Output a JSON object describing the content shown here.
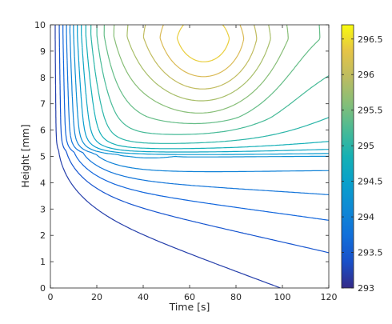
{
  "chart_data": {
    "type": "contour",
    "title": "",
    "xlabel": "Time [s]",
    "ylabel": "Height [mm]",
    "xlim": [
      0,
      120
    ],
    "ylim": [
      0,
      10
    ],
    "xticks": [
      0,
      20,
      40,
      60,
      80,
      100,
      120
    ],
    "yticks": [
      0,
      1,
      2,
      3,
      4,
      5,
      6,
      7,
      8,
      9,
      10
    ],
    "colorbar": {
      "range": [
        293,
        296.7
      ],
      "ticks": [
        293,
        293.5,
        294,
        294.5,
        295,
        295.5,
        296,
        296.5
      ],
      "tick_labels": [
        "293",
        "293.5",
        "294",
        "294.5",
        "295",
        "295.5",
        "296",
        "296.5"
      ],
      "colormap": "parula"
    },
    "grid": false,
    "contour_interval": 0.2,
    "contour_levels": [
      293.2,
      293.4,
      293.6,
      293.8,
      294.0,
      294.2,
      294.4,
      294.6,
      294.8,
      295.0,
      295.2,
      295.4,
      295.6,
      295.8,
      296.0,
      296.2,
      296.4,
      296.6
    ],
    "field_description": "Temperature field: interface near height 5 mm, warm maximum about 296.6 at t=68 s, h=9.2 mm"
  }
}
